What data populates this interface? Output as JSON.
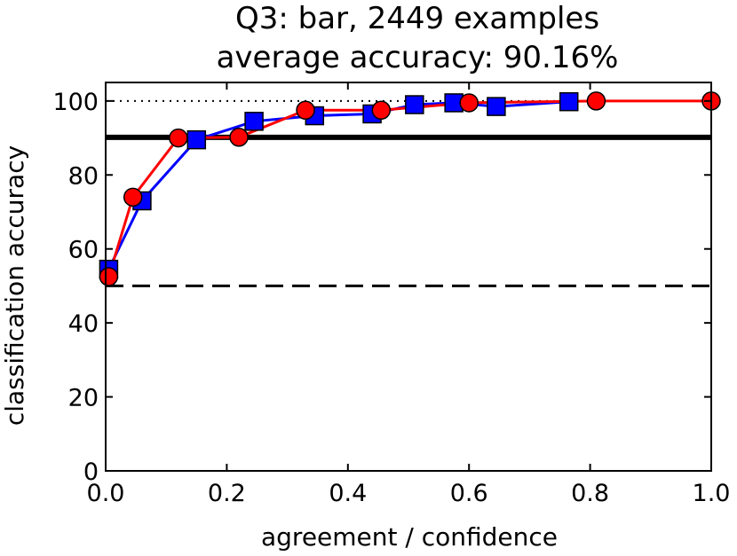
{
  "chart_data": {
    "type": "line",
    "title": "Q3: bar, 2449 examples",
    "subtitle": "average accuracy: 90.16%",
    "xlabel": "agreement / confidence",
    "ylabel": "classification accuracy",
    "xlim": [
      0.0,
      1.0
    ],
    "ylim": [
      0,
      105
    ],
    "x_ticks": [
      0.0,
      0.2,
      0.4,
      0.6,
      0.8,
      1.0
    ],
    "x_tick_labels": [
      "0.0",
      "0.2",
      "0.4",
      "0.6",
      "0.8",
      "1.0"
    ],
    "y_ticks": [
      0,
      20,
      40,
      60,
      80,
      100
    ],
    "y_tick_labels": [
      "0",
      "20",
      "40",
      "60",
      "80",
      "100"
    ],
    "grid": false,
    "reference_lines": [
      {
        "y": 100,
        "style": "dotted",
        "color": "#000000"
      },
      {
        "y": 90.16,
        "style": "solid-thick",
        "color": "#000000"
      },
      {
        "y": 50,
        "style": "dashed",
        "color": "#000000"
      }
    ],
    "series": [
      {
        "marker": "square",
        "color": "#0000ff",
        "x": [
          0.005,
          0.06,
          0.15,
          0.245,
          0.345,
          0.44,
          0.51,
          0.575,
          0.645,
          0.765
        ],
        "y": [
          54.5,
          73,
          89.5,
          94.5,
          96,
          96.5,
          99,
          99.5,
          98.5,
          99.8
        ]
      },
      {
        "marker": "circle",
        "color": "#ff0000",
        "x": [
          0.005,
          0.045,
          0.12,
          0.22,
          0.33,
          0.455,
          0.6,
          0.81,
          1.0
        ],
        "y": [
          52.5,
          74,
          90,
          90.2,
          97.5,
          97.5,
          99.5,
          100,
          100
        ]
      }
    ]
  }
}
